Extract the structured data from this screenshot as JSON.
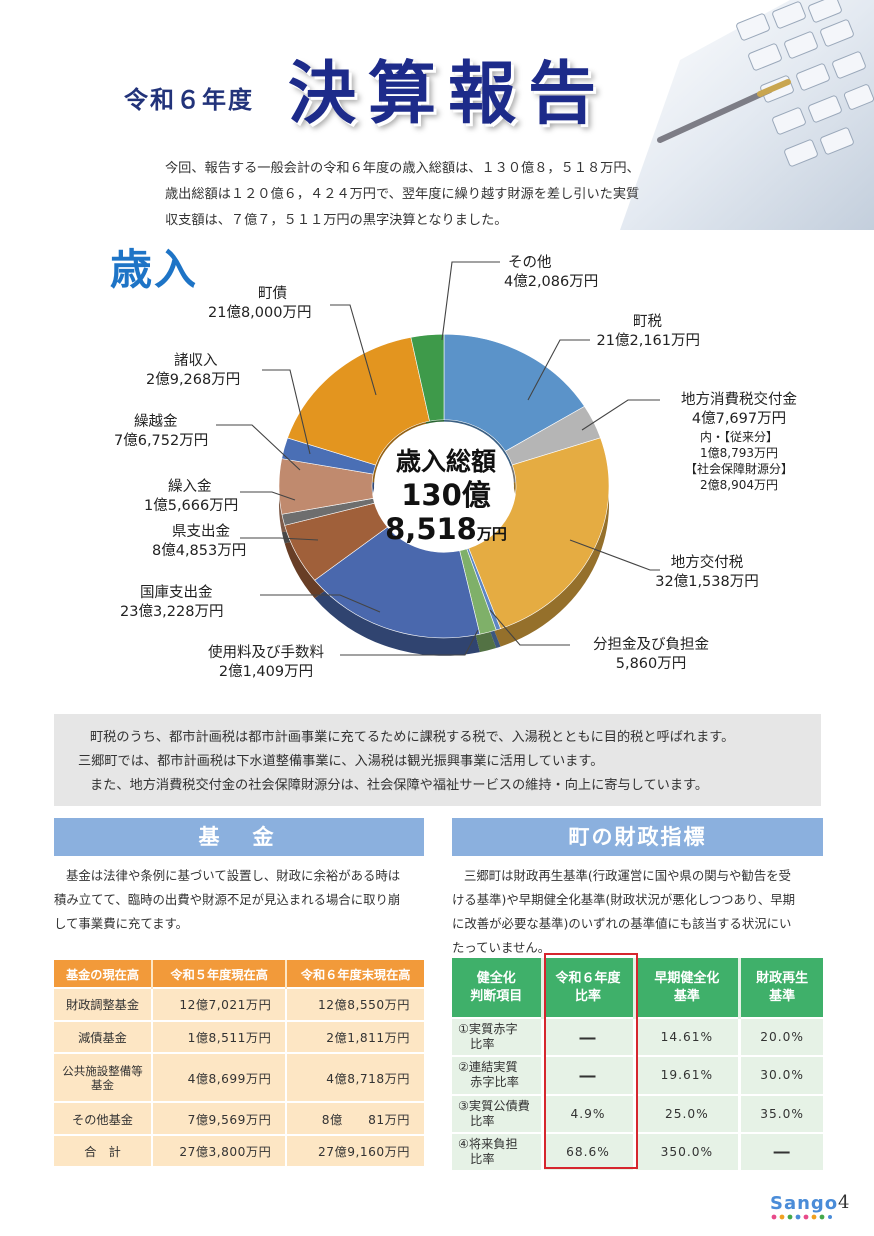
{
  "header": {
    "year": "令和６年度",
    "title": "決算報告",
    "intro": [
      "今回、報告する一般会計の令和６年度の歳入総額は、１３０億８，５１８万円、",
      "歳出総額は１２０億６，４２４万円で、翌年度に繰り越す財源を差し引いた実質",
      "収支額は、７億７，５１１万円の黒字決算となりました。"
    ]
  },
  "revenue": {
    "heading": "歳入",
    "center": {
      "line1": "歳入総額",
      "line2": "130億",
      "line3": "8,518",
      "unit": "万円"
    },
    "labels": {
      "sonota": {
        "name": "その他",
        "value": "4億2,086万円"
      },
      "chozei": {
        "name": "町税",
        "value": "21億2,161万円"
      },
      "chiho_shohi": {
        "name": "地方消費税交付金",
        "value": "4億7,697万円",
        "sub1": "内・【従来分】",
        "sub2": "1億8,793万円",
        "sub3": "【社会保障財源分】",
        "sub4": "2億8,904万円"
      },
      "chiho_kofu": {
        "name": "地方交付税",
        "value": "32億1,538万円"
      },
      "buntan": {
        "name": "分担金及び負担金",
        "value": "5,860万円"
      },
      "shiyo": {
        "name": "使用料及び手数料",
        "value": "2億1,409万円"
      },
      "kokko": {
        "name": "国庫支出金",
        "value": "23億3,228万円"
      },
      "kenshi": {
        "name": "県支出金",
        "value": "8億4,853万円"
      },
      "kurinyu": {
        "name": "繰入金",
        "value": "1億5,666万円"
      },
      "kurikoshi": {
        "name": "繰越金",
        "value": "7億6,752万円"
      },
      "shoshu": {
        "name": "諸収入",
        "value": "2億9,268万円"
      },
      "chosai": {
        "name": "町債",
        "value": "21億8,000万円"
      }
    }
  },
  "chart_data": {
    "type": "pie",
    "title": "歳入",
    "unit": "万円",
    "total": 1308518,
    "categories": [
      "町税",
      "地方消費税交付金",
      "地方交付税",
      "分担金及び負担金",
      "使用料及び手数料",
      "国庫支出金",
      "県支出金",
      "繰入金",
      "繰越金",
      "諸収入",
      "町債",
      "その他"
    ],
    "values": [
      212161,
      47697,
      321538,
      5860,
      21409,
      233228,
      84853,
      15666,
      76752,
      29268,
      218000,
      42086
    ],
    "colors": [
      "#5b93c9",
      "#b5b5b5",
      "#e5ac42",
      "#5d86c4",
      "#7fb069",
      "#4a68ad",
      "#a0603a",
      "#6e6e6e",
      "#c08a6e",
      "#4a6fb5",
      "#e3951f",
      "#3e9a4a"
    ]
  },
  "note": {
    "lines": [
      "町税のうち、都市計画税は都市計画事業に充てるために課税する税で、入湯税とともに目的税と呼ばれます。",
      "三郷町では、都市計画税は下水道整備事業に、入湯税は観光振興事業に活用しています。",
      "また、地方消費税交付金の社会保障財源分は、社会保障や福祉サービスの維持・向上に寄与しています。"
    ]
  },
  "fund_section": {
    "heading": "基　金",
    "text": [
      "基金は法律や条例に基づいて設置し、財政に余裕がある時は",
      "積み立てて、臨時の出費や財源不足が見込まれる場合に取り崩",
      "して事業費に充てます。"
    ],
    "columns": [
      "基金の現在高",
      "令和５年度現在高",
      "令和６年度末現在高"
    ],
    "rows": [
      [
        "財政調整基金",
        "12億7,021万円",
        "12億8,550万円"
      ],
      [
        "減債基金",
        "1億8,511万円",
        "2億1,811万円"
      ],
      [
        "公共施設整備等\n基金",
        "4億8,699万円",
        "4億8,718万円"
      ],
      [
        "その他基金",
        "7億9,569万円",
        "8億　　81万円"
      ],
      [
        "合　計",
        "27億3,800万円",
        "27億9,160万円"
      ]
    ]
  },
  "index_section": {
    "heading": "町の財政指標",
    "text": [
      "三郷町は財政再生基準(行政運営に国や県の関与や勧告を受",
      "ける基準)や早期健全化基準(財政状況が悪化しつつあり、早期",
      "に改善が必要な基準)のいずれの基準値にも該当する状況にい",
      "たっていません。"
    ],
    "columns": [
      "健全化\n判断項目",
      "令和６年度\n比率",
      "早期健全化\n基準",
      "財政再生\n基準"
    ],
    "rows": [
      [
        "①実質赤字\n　比率",
        "―",
        "14.61%",
        "20.0%"
      ],
      [
        "②連結実質\n　赤字比率",
        "―",
        "19.61%",
        "30.0%"
      ],
      [
        "③実質公債費\n　比率",
        "4.9%",
        "25.0%",
        "35.0%"
      ],
      [
        "④将来負担\n　比率",
        "68.6%",
        "350.0%",
        "―"
      ]
    ]
  },
  "footer": {
    "logo": "Sango",
    "page": "4"
  }
}
